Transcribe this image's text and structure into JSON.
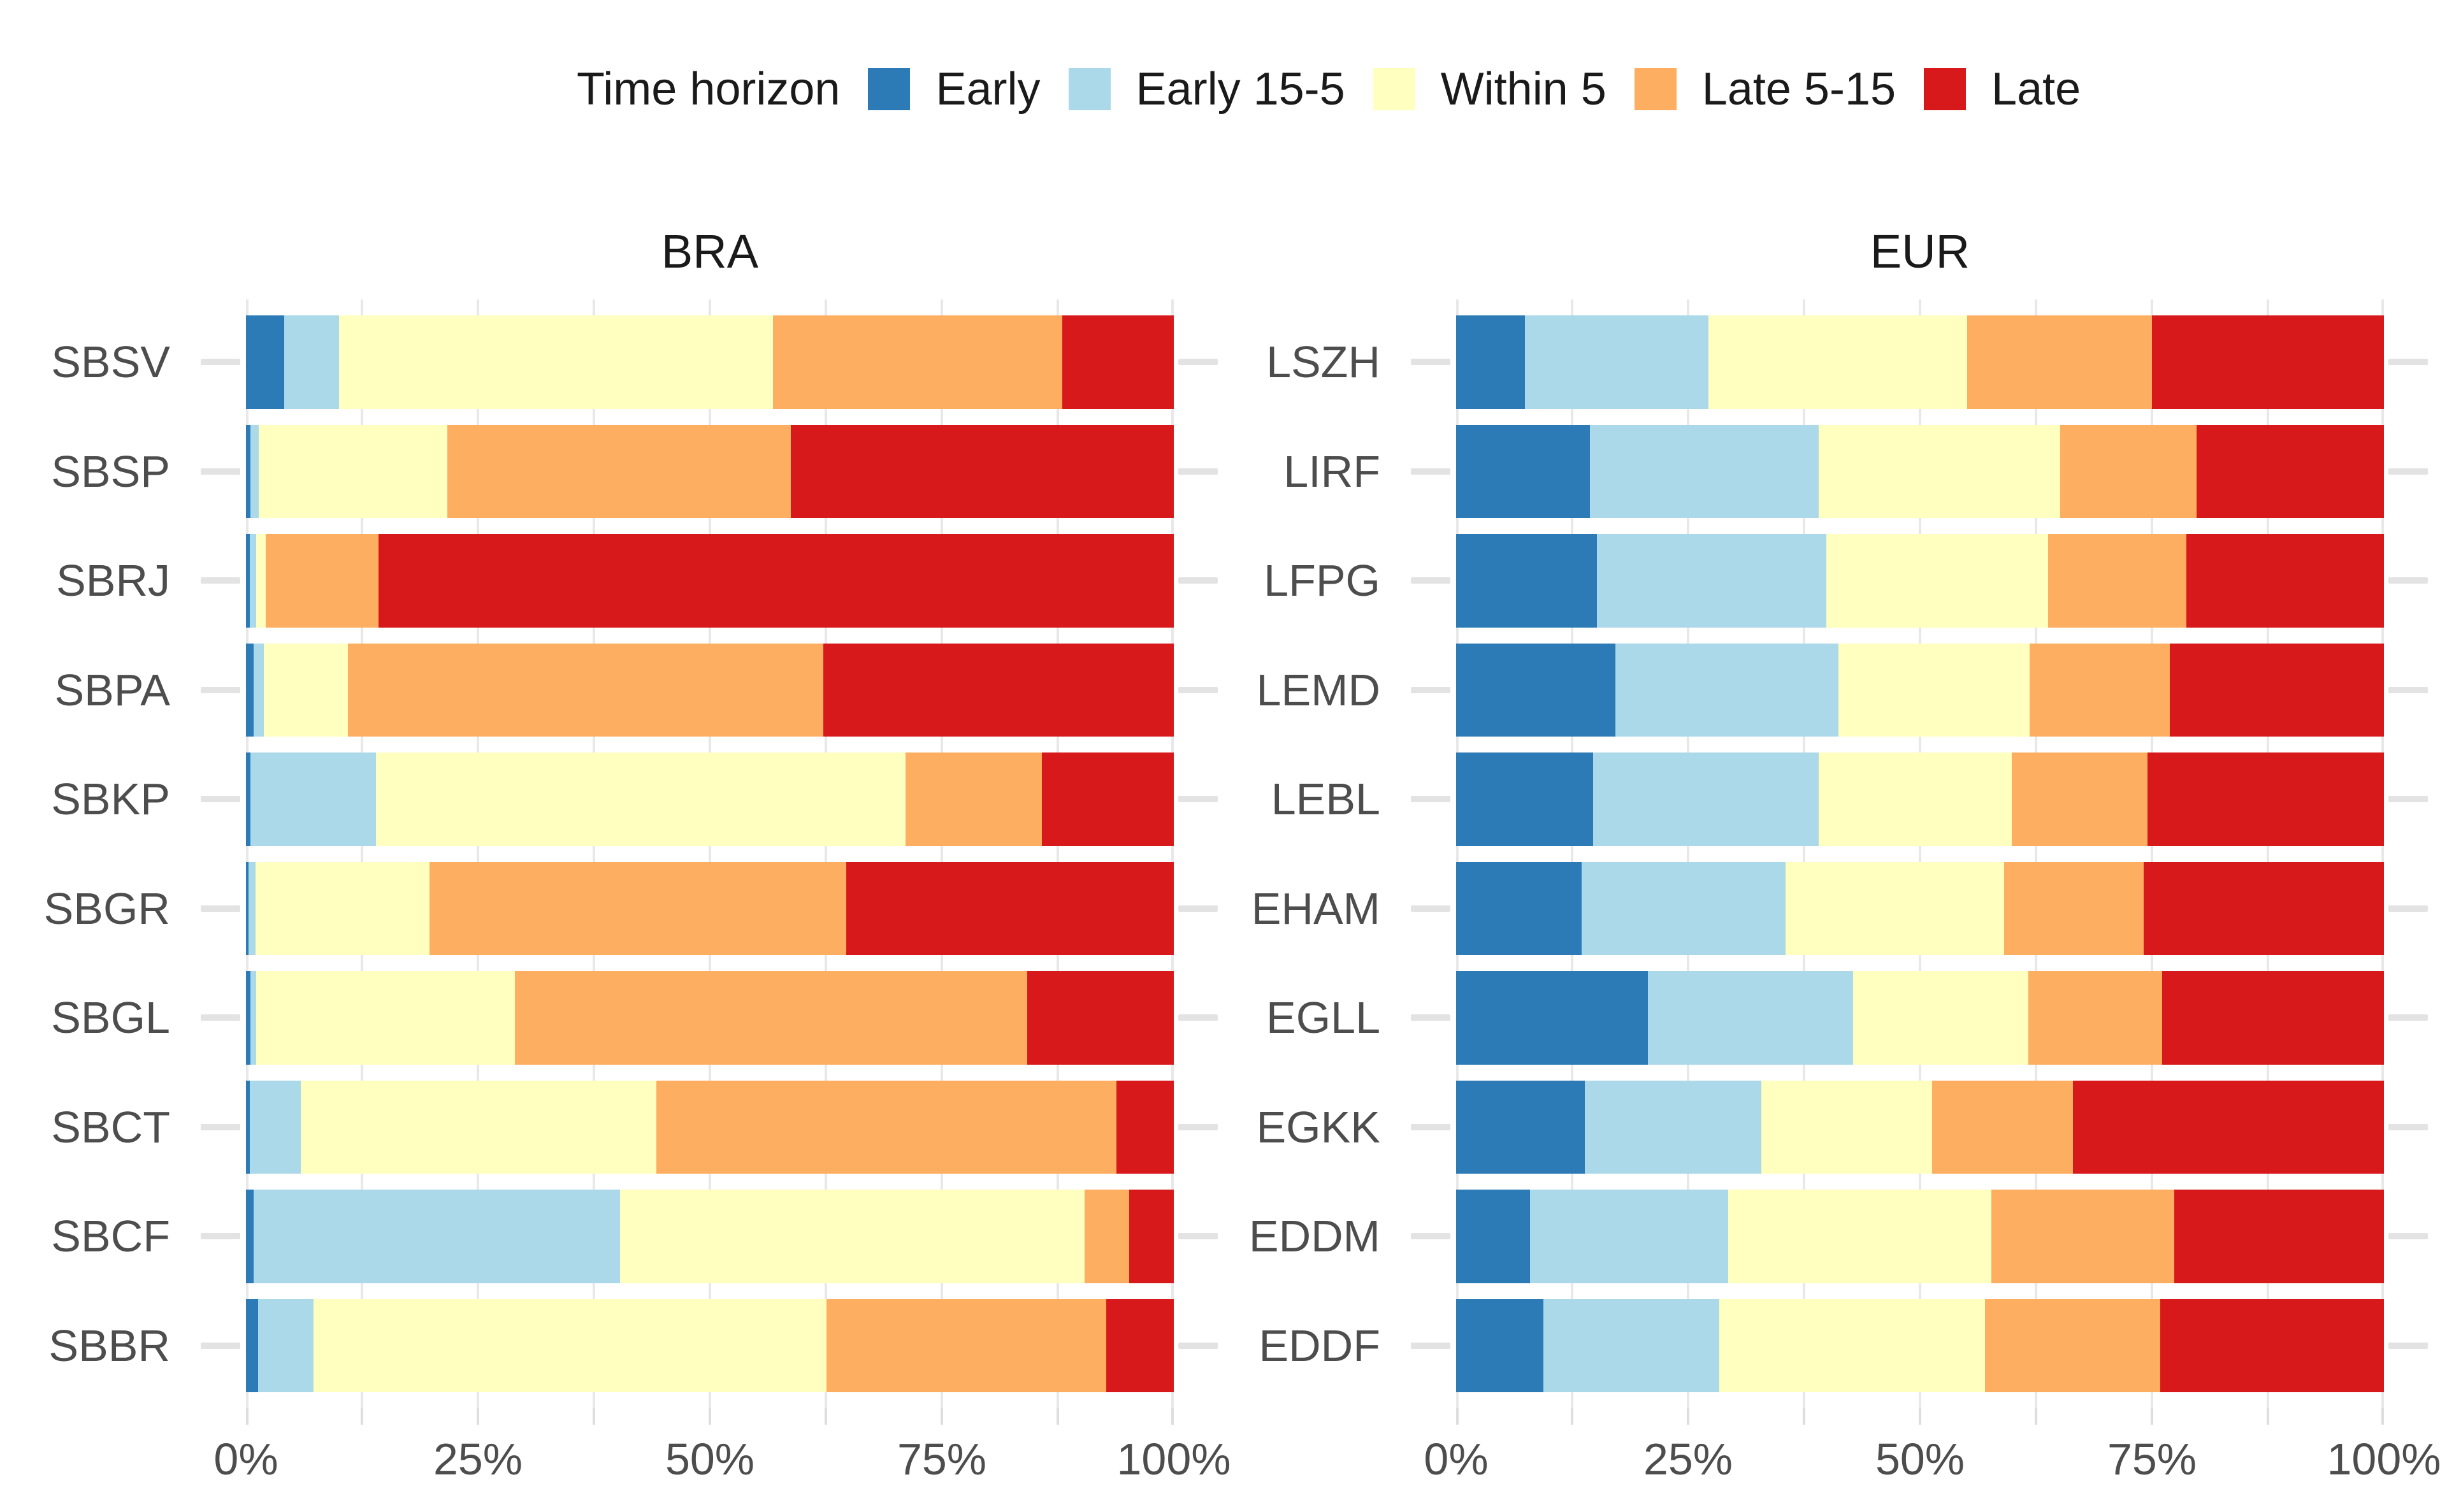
{
  "legend": {
    "title": "Time horizon",
    "items": [
      {
        "label": "Early",
        "color": "#2C7BB6"
      },
      {
        "label": "Early 15-5",
        "color": "#ABD9E9"
      },
      {
        "label": "Within 5",
        "color": "#FFFFBF"
      },
      {
        "label": "Late 5-15",
        "color": "#FDAE61"
      },
      {
        "label": "Late",
        "color": "#D7191C"
      }
    ]
  },
  "axis": {
    "x_tick_labels": [
      "0%",
      "25%",
      "50%",
      "75%",
      "100%"
    ],
    "x_tick_values": [
      0,
      25,
      50,
      75,
      100
    ],
    "x_minor_step_pct": 12.5
  },
  "chart_data": {
    "type": "bar",
    "orientation": "horizontal",
    "stacked": true,
    "units": "percent of flights",
    "xlim": [
      0,
      100
    ],
    "grid": "vertical light-gray lines every 12.5%",
    "legend_position": "top",
    "series_names": [
      "Early",
      "Early 15-5",
      "Within 5",
      "Late 5-15",
      "Late"
    ],
    "series_colors": [
      "#2C7BB6",
      "#ABD9E9",
      "#FFFFBF",
      "#FDAE61",
      "#D7191C"
    ],
    "facets": [
      {
        "title": "BRA",
        "categories": [
          "SBSV",
          "SBSP",
          "SBRJ",
          "SBPA",
          "SBKP",
          "SBGR",
          "SBGL",
          "SBCT",
          "SBCF",
          "SBBR"
        ],
        "values": [
          [
            4.1,
            5.9,
            46.8,
            31.2,
            12.0
          ],
          [
            0.5,
            0.9,
            20.3,
            37.0,
            41.3
          ],
          [
            0.4,
            0.7,
            1.0,
            12.2,
            85.7
          ],
          [
            0.8,
            1.1,
            9.1,
            51.2,
            37.8
          ],
          [
            0.5,
            13.5,
            57.1,
            14.7,
            14.2
          ],
          [
            0.3,
            0.7,
            18.8,
            44.9,
            35.3
          ],
          [
            0.5,
            0.6,
            27.9,
            55.2,
            15.8
          ],
          [
            0.4,
            5.5,
            38.3,
            49.6,
            6.2
          ],
          [
            0.8,
            39.5,
            50.1,
            4.8,
            4.8
          ],
          [
            1.3,
            6.0,
            55.3,
            30.1,
            7.3
          ]
        ]
      },
      {
        "title": "EUR",
        "categories": [
          "LSZH",
          "LIRF",
          "LFPG",
          "LEMD",
          "LEBL",
          "EHAM",
          "EGLL",
          "EGKK",
          "EDDM",
          "EDDF"
        ],
        "values": [
          [
            7.4,
            19.8,
            27.9,
            19.9,
            25.0
          ],
          [
            14.4,
            24.7,
            26.0,
            14.7,
            20.2
          ],
          [
            15.2,
            24.7,
            23.9,
            14.9,
            21.3
          ],
          [
            17.2,
            24.0,
            20.6,
            15.1,
            23.1
          ],
          [
            14.8,
            24.3,
            20.8,
            14.6,
            25.5
          ],
          [
            13.5,
            22.0,
            23.6,
            15.0,
            25.9
          ],
          [
            20.7,
            22.1,
            18.9,
            14.4,
            23.9
          ],
          [
            13.9,
            19.0,
            18.4,
            15.2,
            33.5
          ],
          [
            8.0,
            21.3,
            28.4,
            19.7,
            22.6
          ],
          [
            9.4,
            19.0,
            28.6,
            18.9,
            24.1
          ]
        ]
      }
    ]
  }
}
